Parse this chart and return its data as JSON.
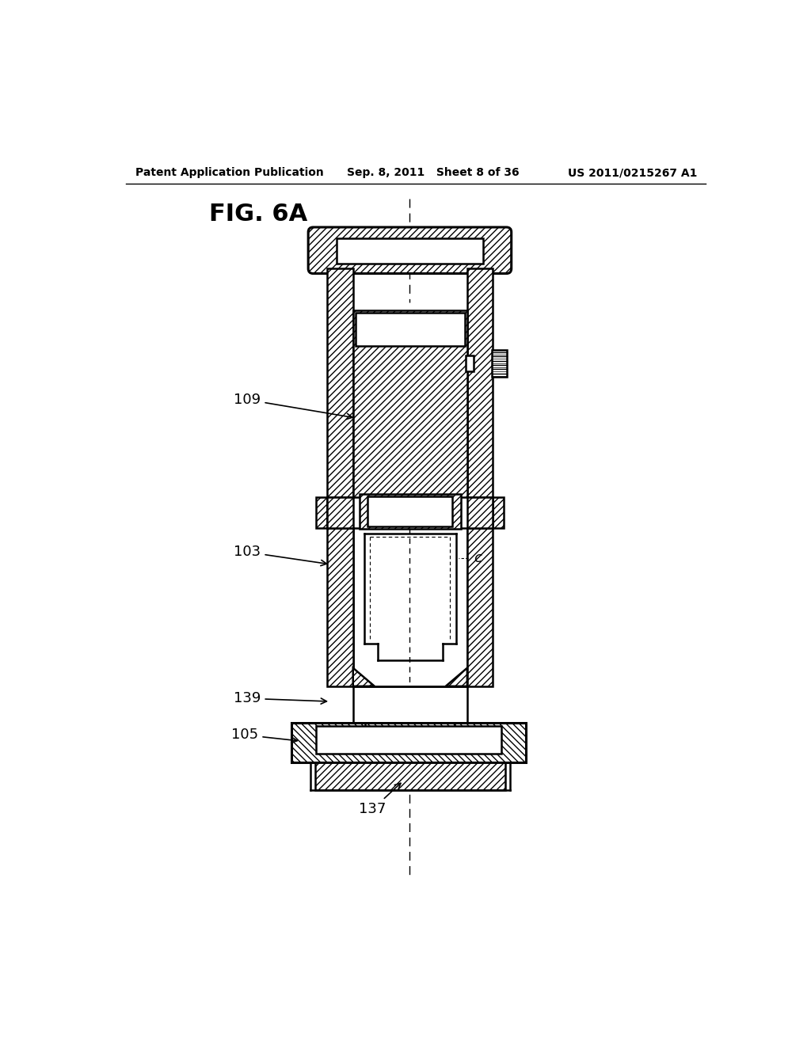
{
  "title": "FIG. 6A",
  "header_left": "Patent Application Publication",
  "header_mid": "Sep. 8, 2011   Sheet 8 of 36",
  "header_right": "US 2011/0215267 A1",
  "bg_color": "#ffffff",
  "line_color": "#000000",
  "label_109": "109",
  "label_103": "103",
  "label_139": "139",
  "label_105": "105",
  "label_137": "137",
  "label_c": "c"
}
